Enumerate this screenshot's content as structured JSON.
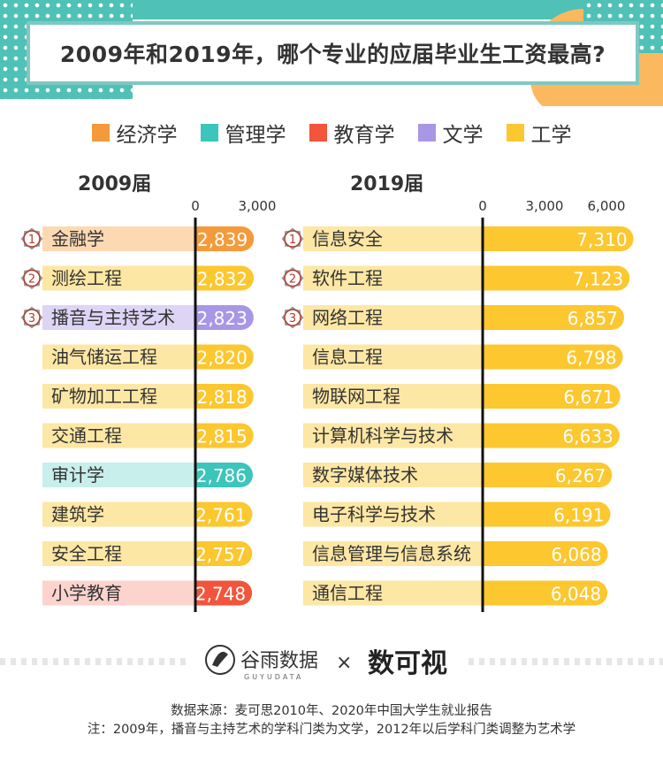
{
  "title": "2009年和2019年，哪个专业的应届毕业生工资最高?",
  "legend": [
    {
      "name": "经济学",
      "color": "#f59a3a"
    },
    {
      "name": "管理学",
      "color": "#3cc5bb"
    },
    {
      "name": "教育学",
      "color": "#f2553b"
    },
    {
      "name": "文学",
      "color": "#a897e6"
    },
    {
      "name": "工学",
      "color": "#fcc72f"
    }
  ],
  "light_colors": {
    "经济学": "#fdd9b2",
    "管理学": "#c8efec",
    "教育学": "#fcd4cd",
    "文学": "#ddd4f6",
    "工学": "#fde7a4"
  },
  "medal_ranks": [
    "1",
    "2",
    "3"
  ],
  "chart_data": [
    {
      "type": "bar",
      "title": "2009届",
      "xlim": [
        0,
        3000
      ],
      "ticks": [
        0,
        3000
      ],
      "tick_labels": [
        "0",
        "3,000"
      ],
      "categories": [
        "金融学",
        "测绘工程",
        "播音与主持艺术",
        "油气储运工程",
        "矿物加工工程",
        "交通工程",
        "审计学",
        "建筑学",
        "安全工程",
        "小学教育"
      ],
      "values": [
        2839,
        2832,
        2823,
        2820,
        2818,
        2815,
        2786,
        2761,
        2757,
        2748
      ],
      "value_labels": [
        "2,839",
        "2,832",
        "2,823",
        "2,820",
        "2,818",
        "2,815",
        "2,786",
        "2,761",
        "2,757",
        "2,748"
      ],
      "groups": [
        "经济学",
        "工学",
        "文学",
        "工学",
        "工学",
        "工学",
        "管理学",
        "工学",
        "工学",
        "教育学"
      ]
    },
    {
      "type": "bar",
      "title": "2019届",
      "xlim": [
        0,
        6000
      ],
      "ticks": [
        0,
        3000,
        6000
      ],
      "tick_labels": [
        "0",
        "3,000",
        "6,000"
      ],
      "categories": [
        "信息安全",
        "软件工程",
        "网络工程",
        "信息工程",
        "物联网工程",
        "计算机科学与技术",
        "数字媒体技术",
        "电子科学与技术",
        "信息管理与信息系统",
        "通信工程"
      ],
      "values": [
        7310,
        7123,
        6857,
        6798,
        6671,
        6633,
        6267,
        6191,
        6068,
        6048
      ],
      "value_labels": [
        "7,310",
        "7,123",
        "6,857",
        "6,798",
        "6,671",
        "6,633",
        "6,267",
        "6,191",
        "6,068",
        "6,048"
      ],
      "groups": [
        "工学",
        "工学",
        "工学",
        "工学",
        "工学",
        "工学",
        "工学",
        "工学",
        "工学",
        "工学"
      ]
    }
  ],
  "logos": {
    "brand1": "谷雨数据",
    "brand1_sub": "GUYUDATA",
    "times": "×",
    "brand2": "数可视"
  },
  "footer": [
    "数据来源：麦可思2010年、2020年中国大学生就业报告",
    "注：2009年，播音与主持艺术的学科门类为文学，2012年以后学科门类调整为艺术学"
  ]
}
